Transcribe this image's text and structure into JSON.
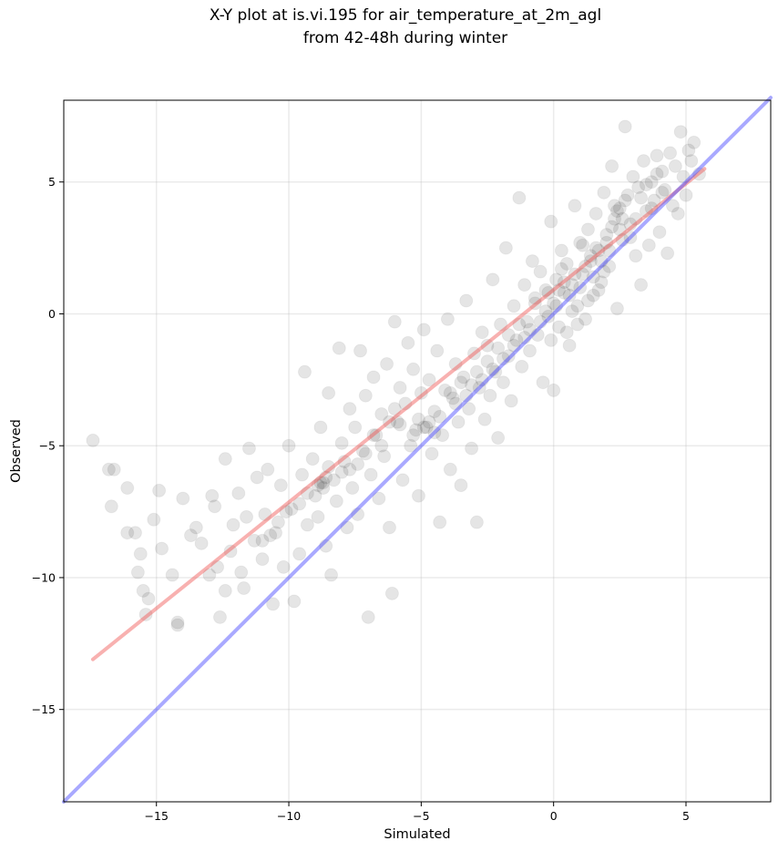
{
  "chart_data": {
    "type": "scatter",
    "title_line1": "X-Y plot at is.vi.195 for air_temperature_at_2m_agl",
    "title_line2": "from 42-48h during winter",
    "xlabel": "Simulated",
    "ylabel": "Observed",
    "xlim": [
      -18.5,
      8.2
    ],
    "ylim": [
      -18.5,
      8.1
    ],
    "xticks": [
      -15,
      -10,
      -5,
      0,
      5
    ],
    "yticks": [
      -15,
      -10,
      -5,
      0,
      5
    ],
    "xtick_labels": [
      "−15",
      "−10",
      "−5",
      "0",
      "5"
    ],
    "ytick_labels": [
      "−15",
      "−10",
      "−5",
      "0",
      "5"
    ],
    "grid": true,
    "points_note": "dense cloud of semi-transparent black points; representative sample",
    "points": [
      [
        -17.4,
        -4.8
      ],
      [
        -16.8,
        -5.9
      ],
      [
        -16.6,
        -5.9
      ],
      [
        -16.7,
        -7.3
      ],
      [
        -16.1,
        -8.3
      ],
      [
        -16.1,
        -6.6
      ],
      [
        -15.8,
        -8.3
      ],
      [
        -15.7,
        -9.8
      ],
      [
        -15.6,
        -9.1
      ],
      [
        -15.5,
        -10.5
      ],
      [
        -15.3,
        -10.8
      ],
      [
        -15.4,
        -11.4
      ],
      [
        -15.1,
        -7.8
      ],
      [
        -14.9,
        -6.7
      ],
      [
        -14.8,
        -8.9
      ],
      [
        -14.4,
        -9.9
      ],
      [
        -14.2,
        -11.7
      ],
      [
        -14.2,
        -11.8
      ],
      [
        -14.0,
        -7.0
      ],
      [
        -13.7,
        -8.4
      ],
      [
        -13.5,
        -8.1
      ],
      [
        -13.3,
        -8.7
      ],
      [
        -13.0,
        -9.9
      ],
      [
        -12.9,
        -6.9
      ],
      [
        -12.7,
        -9.6
      ],
      [
        -12.8,
        -7.3
      ],
      [
        -12.6,
        -11.5
      ],
      [
        -12.4,
        -10.5
      ],
      [
        -12.4,
        -5.5
      ],
      [
        -12.2,
        -9.0
      ],
      [
        -12.1,
        -8.0
      ],
      [
        -11.9,
        -6.8
      ],
      [
        -11.8,
        -9.8
      ],
      [
        -11.7,
        -10.4
      ],
      [
        -11.6,
        -7.7
      ],
      [
        -11.5,
        -5.1
      ],
      [
        -11.3,
        -8.6
      ],
      [
        -11.2,
        -6.2
      ],
      [
        -11.0,
        -9.3
      ],
      [
        -10.9,
        -7.6
      ],
      [
        -10.8,
        -5.9
      ],
      [
        -10.6,
        -11.0
      ],
      [
        -10.5,
        -8.3
      ],
      [
        -10.3,
        -6.5
      ],
      [
        -10.2,
        -9.6
      ],
      [
        -10.0,
        -5.0
      ],
      [
        -9.9,
        -7.4
      ],
      [
        -9.8,
        -10.9
      ],
      [
        -9.6,
        -9.1
      ],
      [
        -9.5,
        -6.1
      ],
      [
        -9.4,
        -2.2
      ],
      [
        -9.3,
        -8.0
      ],
      [
        -9.1,
        -5.5
      ],
      [
        -9.0,
        -6.9
      ],
      [
        -8.9,
        -7.7
      ],
      [
        -8.8,
        -4.3
      ],
      [
        -8.7,
        -6.4
      ],
      [
        -8.6,
        -8.8
      ],
      [
        -8.5,
        -3.0
      ],
      [
        -8.5,
        -5.8
      ],
      [
        -8.4,
        -9.9
      ],
      [
        -8.3,
        -6.3
      ],
      [
        -8.2,
        -7.1
      ],
      [
        -8.1,
        -1.3
      ],
      [
        -8.0,
        -4.9
      ],
      [
        -7.9,
        -5.6
      ],
      [
        -7.8,
        -8.1
      ],
      [
        -7.7,
        -3.6
      ],
      [
        -7.6,
        -6.6
      ],
      [
        -7.5,
        -4.3
      ],
      [
        -7.4,
        -7.6
      ],
      [
        -7.3,
        -1.4
      ],
      [
        -7.2,
        -5.2
      ],
      [
        -7.1,
        -3.1
      ],
      [
        -7.0,
        -11.5
      ],
      [
        -6.9,
        -6.1
      ],
      [
        -6.8,
        -2.4
      ],
      [
        -6.7,
        -4.6
      ],
      [
        -6.6,
        -7.0
      ],
      [
        -6.5,
        -3.8
      ],
      [
        -6.4,
        -5.4
      ],
      [
        -6.3,
        -1.9
      ],
      [
        -6.2,
        -8.1
      ],
      [
        -6.1,
        -10.6
      ],
      [
        -6.0,
        -0.3
      ],
      [
        -5.9,
        -4.1
      ],
      [
        -5.8,
        -2.8
      ],
      [
        -5.7,
        -6.3
      ],
      [
        -5.6,
        -3.4
      ],
      [
        -5.5,
        -1.1
      ],
      [
        -5.4,
        -5.0
      ],
      [
        -5.3,
        -2.1
      ],
      [
        -5.2,
        -4.4
      ],
      [
        -5.1,
        -6.9
      ],
      [
        -5.0,
        -3.0
      ],
      [
        -4.9,
        -0.6
      ],
      [
        -4.8,
        -4.3
      ],
      [
        -4.7,
        -2.5
      ],
      [
        -4.6,
        -5.3
      ],
      [
        -4.5,
        -3.7
      ],
      [
        -4.4,
        -1.4
      ],
      [
        -4.3,
        -7.9
      ],
      [
        -4.2,
        -4.6
      ],
      [
        -4.1,
        -2.9
      ],
      [
        -4.0,
        -0.2
      ],
      [
        -3.9,
        -5.9
      ],
      [
        -3.8,
        -3.2
      ],
      [
        -3.7,
        -1.9
      ],
      [
        -3.6,
        -4.1
      ],
      [
        -3.5,
        -6.5
      ],
      [
        -3.4,
        -2.4
      ],
      [
        -3.3,
        0.5
      ],
      [
        -3.2,
        -3.6
      ],
      [
        -3.1,
        -5.1
      ],
      [
        -3.0,
        -1.5
      ],
      [
        -2.9,
        -7.9
      ],
      [
        -2.8,
        -2.8
      ],
      [
        -2.7,
        -0.7
      ],
      [
        -2.6,
        -4.0
      ],
      [
        -2.5,
        -1.2
      ],
      [
        -2.4,
        -3.1
      ],
      [
        -2.3,
        1.3
      ],
      [
        -2.2,
        -2.2
      ],
      [
        -2.1,
        -4.7
      ],
      [
        -2.0,
        -0.4
      ],
      [
        -1.9,
        -2.6
      ],
      [
        -1.8,
        2.5
      ],
      [
        -1.7,
        -1.6
      ],
      [
        -1.6,
        -3.3
      ],
      [
        -1.5,
        0.3
      ],
      [
        -1.4,
        -1.0
      ],
      [
        -1.3,
        4.4
      ],
      [
        -1.2,
        -2.0
      ],
      [
        -1.1,
        1.1
      ],
      [
        -1.0,
        -0.3
      ],
      [
        -0.9,
        -1.4
      ],
      [
        -0.8,
        2.0
      ],
      [
        -0.7,
        0.6
      ],
      [
        -0.6,
        -0.8
      ],
      [
        -0.5,
        1.6
      ],
      [
        -0.4,
        -2.6
      ],
      [
        -0.3,
        0.9
      ],
      [
        -0.2,
        -0.1
      ],
      [
        -0.1,
        3.5
      ],
      [
        0.0,
        0.4
      ],
      [
        0.0,
        -2.9
      ],
      [
        0.1,
        1.3
      ],
      [
        0.2,
        -0.5
      ],
      [
        0.3,
        2.4
      ],
      [
        0.4,
        0.8
      ],
      [
        0.5,
        1.9
      ],
      [
        0.6,
        -1.2
      ],
      [
        0.7,
        1.1
      ],
      [
        0.8,
        4.1
      ],
      [
        0.9,
        0.3
      ],
      [
        1.0,
        2.7
      ],
      [
        1.1,
        1.5
      ],
      [
        1.2,
        -0.2
      ],
      [
        1.3,
        3.2
      ],
      [
        1.4,
        2.0
      ],
      [
        1.5,
        0.7
      ],
      [
        1.6,
        3.8
      ],
      [
        1.7,
        2.4
      ],
      [
        1.8,
        1.2
      ],
      [
        1.9,
        4.6
      ],
      [
        2.0,
        3.0
      ],
      [
        2.1,
        1.8
      ],
      [
        2.2,
        5.6
      ],
      [
        2.3,
        3.6
      ],
      [
        2.4,
        0.2
      ],
      [
        2.5,
        4.0
      ],
      [
        2.6,
        2.8
      ],
      [
        2.7,
        7.1
      ],
      [
        2.8,
        4.5
      ],
      [
        2.9,
        3.4
      ],
      [
        3.0,
        5.2
      ],
      [
        3.1,
        2.2
      ],
      [
        3.2,
        4.8
      ],
      [
        3.3,
        1.1
      ],
      [
        3.4,
        5.8
      ],
      [
        3.5,
        3.9
      ],
      [
        3.6,
        2.6
      ],
      [
        3.7,
        5.0
      ],
      [
        3.8,
        4.3
      ],
      [
        3.9,
        6.0
      ],
      [
        4.0,
        3.1
      ],
      [
        4.1,
        5.4
      ],
      [
        4.2,
        4.7
      ],
      [
        4.3,
        2.3
      ],
      [
        4.4,
        6.1
      ],
      [
        4.5,
        4.1
      ],
      [
        4.6,
        5.6
      ],
      [
        4.7,
        3.8
      ],
      [
        4.8,
        6.9
      ],
      [
        4.9,
        5.2
      ],
      [
        5.0,
        4.5
      ],
      [
        5.1,
        6.2
      ],
      [
        5.2,
        5.8
      ],
      [
        5.3,
        6.5
      ],
      [
        5.5,
        5.3
      ],
      [
        -8.9,
        -6.5
      ],
      [
        -8.8,
        -6.4
      ],
      [
        -8.7,
        -6.6
      ],
      [
        -8.6,
        -6.2
      ],
      [
        -4.9,
        -4.3
      ],
      [
        -4.7,
        -4.1
      ],
      [
        -4.5,
        -4.5
      ],
      [
        -4.3,
        -3.9
      ],
      [
        -5.1,
        -4.0
      ],
      [
        -5.3,
        -4.6
      ],
      [
        0.2,
        0.9
      ],
      [
        0.4,
        1.2
      ],
      [
        0.6,
        0.7
      ],
      [
        0.8,
        1.5
      ],
      [
        1.0,
        1.0
      ],
      [
        1.2,
        1.8
      ],
      [
        1.4,
        2.2
      ],
      [
        1.6,
        2.5
      ],
      [
        1.8,
        2.0
      ],
      [
        2.0,
        2.7
      ],
      [
        2.2,
        3.3
      ],
      [
        2.4,
        3.9
      ],
      [
        2.6,
        3.6
      ],
      [
        2.3,
        4.1
      ],
      [
        2.5,
        3.2
      ],
      [
        0.1,
        0.3
      ],
      [
        -0.3,
        0.1
      ],
      [
        -0.5,
        -0.3
      ],
      [
        -0.7,
        0.4
      ],
      [
        -0.9,
        -0.6
      ],
      [
        -1.1,
        -0.9
      ],
      [
        -1.3,
        -0.4
      ],
      [
        -1.5,
        -1.2
      ],
      [
        -1.7,
        -0.8
      ],
      [
        -1.9,
        -1.7
      ],
      [
        -2.1,
        -1.3
      ],
      [
        -2.3,
        -2.1
      ],
      [
        -2.5,
        -1.8
      ],
      [
        -2.7,
        -2.5
      ],
      [
        -2.9,
        -2.2
      ],
      [
        -3.1,
        -2.7
      ],
      [
        -3.3,
        -3.1
      ],
      [
        -3.5,
        -2.6
      ],
      [
        -3.7,
        -3.4
      ],
      [
        -3.9,
        -3.0
      ],
      [
        -6.2,
        -4.1
      ],
      [
        -6.5,
        -5.0
      ],
      [
        -6.8,
        -4.6
      ],
      [
        -7.1,
        -5.3
      ],
      [
        -7.4,
        -5.7
      ],
      [
        -7.7,
        -5.9
      ],
      [
        -8.0,
        -6.0
      ],
      [
        -9.3,
        -6.8
      ],
      [
        -9.6,
        -7.2
      ],
      [
        -10.1,
        -7.5
      ],
      [
        -10.4,
        -7.9
      ],
      [
        -10.7,
        -8.4
      ],
      [
        -11.0,
        -8.6
      ],
      [
        -6.0,
        -3.6
      ],
      [
        -5.8,
        -4.2
      ],
      [
        3.1,
        3.6
      ],
      [
        3.3,
        4.4
      ],
      [
        3.5,
        4.9
      ],
      [
        3.7,
        4.0
      ],
      [
        3.9,
        5.3
      ],
      [
        4.1,
        4.6
      ],
      [
        1.1,
        2.6
      ],
      [
        1.3,
        0.5
      ],
      [
        1.5,
        1.4
      ],
      [
        0.9,
        -0.4
      ],
      [
        0.7,
        0.1
      ],
      [
        0.5,
        -0.7
      ],
      [
        0.3,
        1.7
      ],
      [
        -0.1,
        -1.0
      ],
      [
        -0.2,
        0.8
      ],
      [
        1.7,
        0.9
      ],
      [
        1.9,
        1.6
      ],
      [
        2.1,
        2.4
      ],
      [
        2.7,
        4.3
      ],
      [
        2.9,
        2.9
      ]
    ],
    "series": [
      {
        "name": "",
        "type": "regression",
        "color": "#ef5350",
        "x": [
          -17.4,
          5.7
        ],
        "y": [
          -13.1,
          5.5
        ]
      },
      {
        "name": "",
        "type": "identity",
        "color": "#4040ff",
        "x": [
          -18.5,
          8.2
        ],
        "y": [
          -18.5,
          8.2
        ]
      }
    ]
  }
}
